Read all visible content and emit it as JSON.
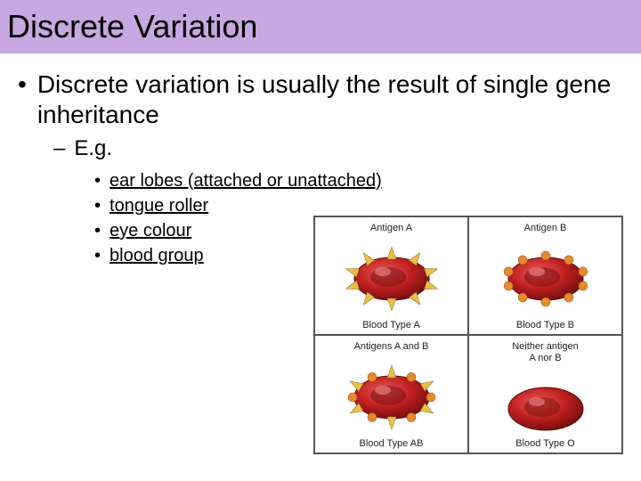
{
  "title": "Discrete Variation",
  "main_bullet": "Discrete variation is usually the result of single gene inheritance",
  "sub_bullet": "E.g.",
  "examples": [
    "ear lobes (attached or unattached)",
    "tongue roller",
    "eye colour",
    "blood group"
  ],
  "diagram": {
    "cells": [
      {
        "antigen_label": "Antigen A",
        "type_label": "Blood Type A",
        "antigen_style": "A"
      },
      {
        "antigen_label": "Antigen B",
        "type_label": "Blood Type B",
        "antigen_style": "B"
      },
      {
        "antigen_label": "Antigens A and B",
        "type_label": "Blood Type AB",
        "antigen_style": "AB"
      },
      {
        "antigen_label": "Neither antigen\nA nor B",
        "type_label": "Blood Type O",
        "antigen_style": "O"
      }
    ],
    "colors": {
      "cell_red": "#c22121",
      "cell_dark": "#7a0f0f",
      "antigen_yellow": "#e6c04a",
      "antigen_orange": "#e68a2e",
      "border": "#555555",
      "background": "#ffffff"
    }
  },
  "styling": {
    "title_bg": "#c7a8e0",
    "title_font_size": 36,
    "main_font_size": 28,
    "sub_font_size": 24,
    "example_font_size": 20,
    "font_family": "Comic Sans MS"
  }
}
